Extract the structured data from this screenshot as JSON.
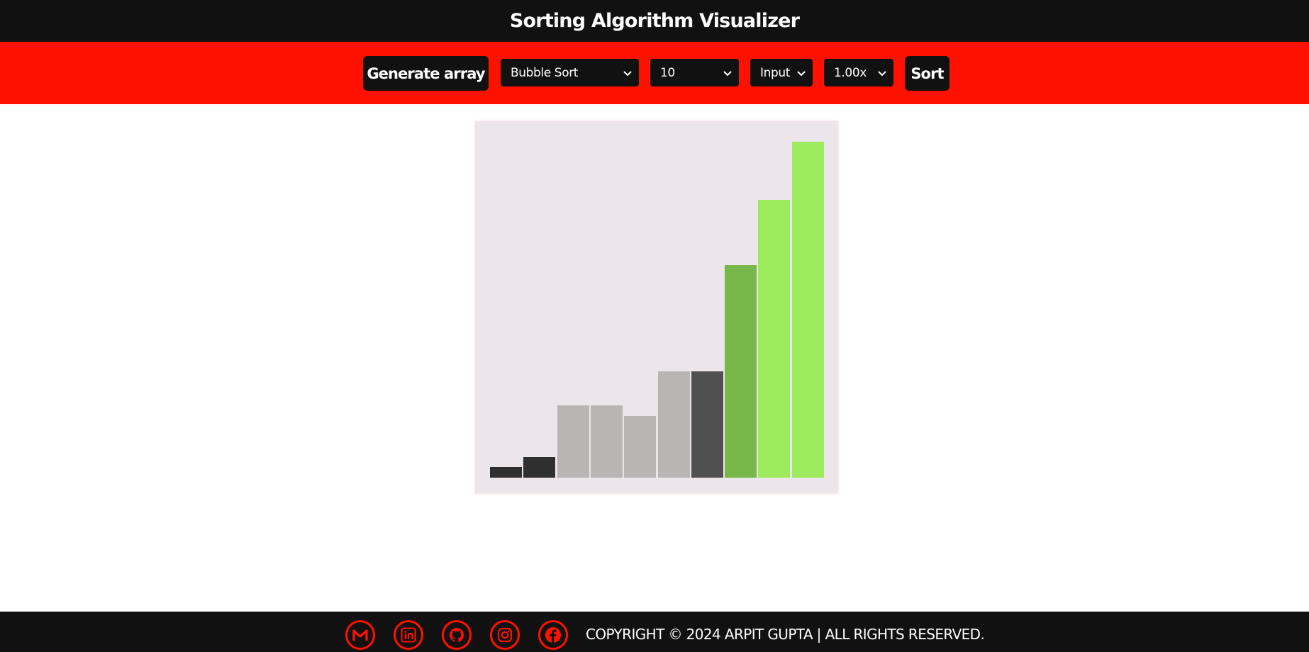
{
  "header": {
    "title": "Sorting Algorithm Visualizer"
  },
  "toolbar": {
    "generate_label": "Generate array",
    "algorithm": {
      "selected": "Bubble Sort"
    },
    "size": {
      "selected": "10"
    },
    "mode": {
      "selected": "Input"
    },
    "speed": {
      "selected": "1.00x"
    },
    "sort_label": "Sort"
  },
  "chart_data": {
    "type": "bar",
    "values": [
      3,
      6,
      21,
      21,
      18,
      31,
      31,
      62,
      81,
      98
    ],
    "ylim": [
      0,
      100
    ],
    "bar_colors": [
      "#2f2f2f",
      "#2f2f2f",
      "#bab5b5",
      "#bab5b5",
      "#bab5b5",
      "#bab5b5",
      "#515051",
      "#78b84a",
      "#9deb5d",
      "#9deb5d"
    ]
  },
  "footer": {
    "social": [
      {
        "icon": "gmail-icon"
      },
      {
        "icon": "linkedin-icon"
      },
      {
        "icon": "github-icon"
      },
      {
        "icon": "instagram-icon"
      },
      {
        "icon": "facebook-icon"
      }
    ],
    "copyright": "COPYRIGHT © 2024 ARPIT GUPTA | ALL RIGHTS RESERVED."
  },
  "colors": {
    "header_bg": "#111111",
    "toolbar_bg": "#ff1100",
    "chart_bg": "#ece6ea",
    "accent": "#ff1100"
  }
}
